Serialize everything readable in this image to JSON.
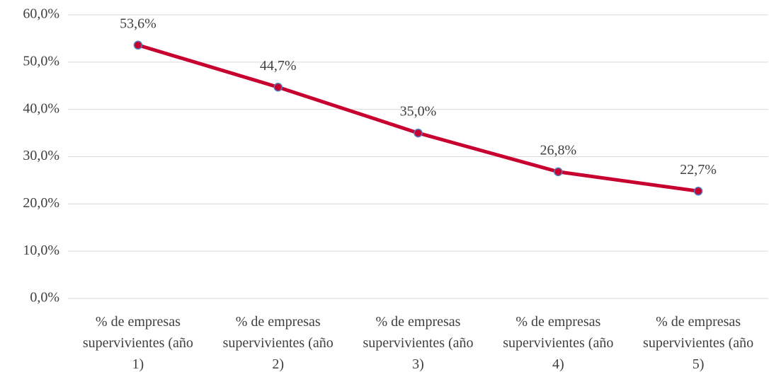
{
  "chart_data": {
    "type": "line",
    "categories": [
      "% de empresas supervivientes (año 1)",
      "% de empresas supervivientes (año 2)",
      "% de empresas supervivientes (año 3)",
      "% de empresas supervivientes (año 4)",
      "% de empresas supervivientes (año 5)"
    ],
    "series": [
      {
        "color": "#c8002f",
        "marker_edge": "#4f81bd",
        "values": [
          53.6,
          44.7,
          35.0,
          26.8,
          22.7
        ],
        "value_labels": [
          "53,6%",
          "44,7%",
          "35,0%",
          "26,8%",
          "22,7%"
        ]
      }
    ],
    "ylim": [
      0,
      60
    ],
    "yticks": [
      {
        "value": 0,
        "label": "0,0%"
      },
      {
        "value": 10,
        "label": "10,0%"
      },
      {
        "value": 20,
        "label": "20,0%"
      },
      {
        "value": 30,
        "label": "30,0%"
      },
      {
        "value": 40,
        "label": "40,0%"
      },
      {
        "value": 50,
        "label": "50,0%"
      },
      {
        "value": 60,
        "label": "60,0%"
      }
    ],
    "grid": true
  }
}
